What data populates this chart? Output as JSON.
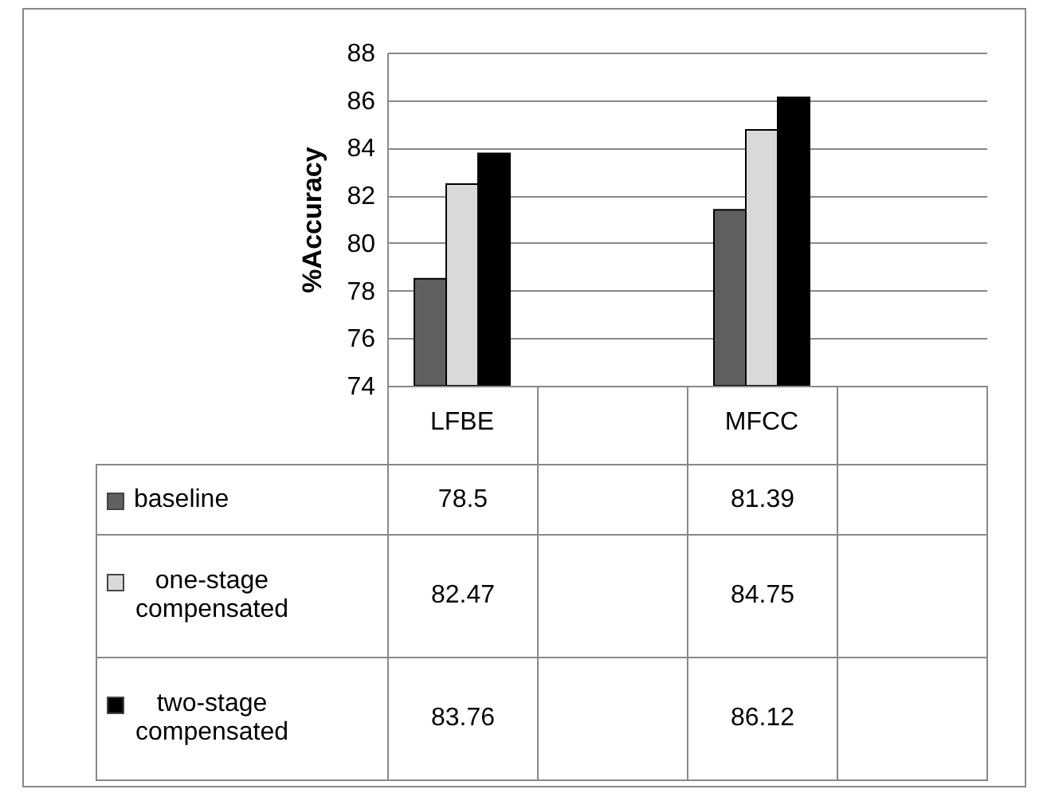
{
  "chart_data": {
    "type": "bar",
    "ylabel": "%Accuracy",
    "categories": [
      "LFBE",
      null,
      "MFCC",
      null
    ],
    "series": [
      {
        "name": "baseline",
        "color": "#606060",
        "values": [
          78.5,
          null,
          81.39,
          null
        ]
      },
      {
        "name": "one-stage compensated",
        "color": "#d9d9d9",
        "values": [
          82.47,
          null,
          84.75,
          null
        ]
      },
      {
        "name": "two-stage compensated",
        "color": "#000000",
        "values": [
          83.76,
          null,
          86.12,
          null
        ]
      }
    ],
    "ylim": [
      74,
      88
    ],
    "yticks": [
      74,
      76,
      78,
      80,
      82,
      84,
      86,
      88
    ],
    "grid": "y",
    "legend": "bottom",
    "data_labels": true
  }
}
